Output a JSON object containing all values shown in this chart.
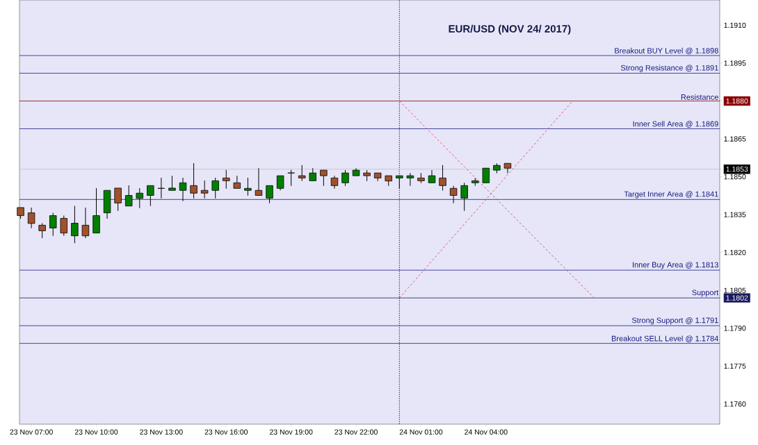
{
  "chart_data": {
    "type": "candlestick",
    "title": "EUR/USD (NOV 24/ 2017)",
    "x": [
      "2017-11-23T06:30",
      "2017-11-23T07:00",
      "2017-11-23T07:30",
      "2017-11-23T08:00",
      "2017-11-23T08:30",
      "2017-11-23T09:00",
      "2017-11-23T09:30",
      "2017-11-23T10:00",
      "2017-11-23T10:30",
      "2017-11-23T11:00",
      "2017-11-23T11:30",
      "2017-11-23T12:00",
      "2017-11-23T12:30",
      "2017-11-23T13:00",
      "2017-11-23T13:30",
      "2017-11-23T14:00",
      "2017-11-23T14:30",
      "2017-11-23T15:00",
      "2017-11-23T15:30",
      "2017-11-23T16:00",
      "2017-11-23T16:30",
      "2017-11-23T17:00",
      "2017-11-23T17:30",
      "2017-11-23T18:00",
      "2017-11-23T18:30",
      "2017-11-23T19:00",
      "2017-11-23T19:30",
      "2017-11-23T20:00",
      "2017-11-23T20:30",
      "2017-11-23T21:00",
      "2017-11-23T21:30",
      "2017-11-23T22:00",
      "2017-11-23T22:30",
      "2017-11-23T23:00",
      "2017-11-23T23:30",
      "2017-11-24T00:00",
      "2017-11-24T00:30",
      "2017-11-24T01:00",
      "2017-11-24T01:30",
      "2017-11-24T02:00",
      "2017-11-24T02:30",
      "2017-11-24T03:00",
      "2017-11-24T03:30",
      "2017-11-24T04:00",
      "2017-11-24T04:30",
      "2017-11-24T05:00"
    ],
    "ohlc": [
      [
        1.18378,
        1.18378,
        1.18334,
        1.18346
      ],
      [
        1.18357,
        1.18378,
        1.18296,
        1.18315
      ],
      [
        1.18308,
        1.18316,
        1.18257,
        1.18286
      ],
      [
        1.18297,
        1.18357,
        1.18266,
        1.18346
      ],
      [
        1.18335,
        1.18346,
        1.18266,
        1.18277
      ],
      [
        1.18266,
        1.18385,
        1.18237,
        1.18316
      ],
      [
        1.18308,
        1.18378,
        1.18257,
        1.18266
      ],
      [
        1.18277,
        1.18455,
        1.18277,
        1.18346
      ],
      [
        1.18357,
        1.18446,
        1.18334,
        1.18446
      ],
      [
        1.18455,
        1.18455,
        1.18365,
        1.18396
      ],
      [
        1.18384,
        1.18466,
        1.18384,
        1.18426
      ],
      [
        1.18414,
        1.18455,
        1.18376,
        1.18435
      ],
      [
        1.18426,
        1.18466,
        1.18384,
        1.18465
      ],
      [
        1.18454,
        1.18496,
        1.18414,
        1.18454
      ],
      [
        1.18446,
        1.18504,
        1.18446,
        1.18455
      ],
      [
        1.18446,
        1.18496,
        1.18403,
        1.18476
      ],
      [
        1.18465,
        1.18554,
        1.18414,
        1.18435
      ],
      [
        1.18446,
        1.18485,
        1.18414,
        1.18435
      ],
      [
        1.18446,
        1.18496,
        1.18414,
        1.18484
      ],
      [
        1.18495,
        1.18527,
        1.18453,
        1.18484
      ],
      [
        1.18476,
        1.18504,
        1.18454,
        1.18454
      ],
      [
        1.18446,
        1.18496,
        1.18425,
        1.18454
      ],
      [
        1.18446,
        1.18534,
        1.18426,
        1.18426
      ],
      [
        1.18415,
        1.18465,
        1.18395,
        1.18465
      ],
      [
        1.18454,
        1.18504,
        1.18446,
        1.18504
      ],
      [
        1.18515,
        1.18527,
        1.18464,
        1.18515
      ],
      [
        1.18504,
        1.18546,
        1.18483,
        1.18495
      ],
      [
        1.18484,
        1.18534,
        1.18484,
        1.18515
      ],
      [
        1.18526,
        1.18527,
        1.18464,
        1.18504
      ],
      [
        1.18495,
        1.18504,
        1.18453,
        1.18465
      ],
      [
        1.18476,
        1.18526,
        1.18464,
        1.18515
      ],
      [
        1.18504,
        1.18534,
        1.18504,
        1.18526
      ],
      [
        1.18515,
        1.18526,
        1.18483,
        1.18504
      ],
      [
        1.18515,
        1.18515,
        1.18483,
        1.18495
      ],
      [
        1.18504,
        1.18504,
        1.18464,
        1.18483
      ],
      [
        1.18495,
        1.18504,
        1.18453,
        1.18504
      ],
      [
        1.18495,
        1.18515,
        1.18464,
        1.18504
      ],
      [
        1.18495,
        1.18515,
        1.18475,
        1.18484
      ],
      [
        1.18476,
        1.18526,
        1.18476,
        1.18504
      ],
      [
        1.18495,
        1.18546,
        1.18445,
        1.18465
      ],
      [
        1.18454,
        1.18464,
        1.18395,
        1.18426
      ],
      [
        1.18415,
        1.18476,
        1.18365,
        1.18465
      ],
      [
        1.18476,
        1.18495,
        1.18464,
        1.18484
      ],
      [
        1.18476,
        1.18534,
        1.18476,
        1.18534
      ],
      [
        1.18526,
        1.18553,
        1.18514,
        1.18545
      ],
      [
        1.18553,
        1.18553,
        1.18514,
        1.18534
      ]
    ],
    "colors": [
      "#a0522d",
      "#a0522d",
      "#a0522d",
      "#008000",
      "#a0522d",
      "#008000",
      "#a0522d",
      "#008000",
      "#008000",
      "#a0522d",
      "#008000",
      "#008000",
      "#008000",
      "#000000",
      "#008000",
      "#008000",
      "#a0522d",
      "#a0522d",
      "#008000",
      "#a0522d",
      "#a0522d",
      "#008000",
      "#a0522d",
      "#008000",
      "#008000",
      "#000000",
      "#a0522d",
      "#008000",
      "#a0522d",
      "#a0522d",
      "#008000",
      "#008000",
      "#a0522d",
      "#a0522d",
      "#a0522d",
      "#008000",
      "#008000",
      "#a0522d",
      "#008000",
      "#a0522d",
      "#a0522d",
      "#008000",
      "#008000",
      "#008000",
      "#008000",
      "#a0522d"
    ],
    "xlim": [
      "2017-11-23T06:27",
      "2017-11-24T14:48"
    ],
    "ylim": [
      1.1752,
      1.192
    ],
    "xticks": [
      {
        "value": "2017-11-23T07:00",
        "label": "23 Nov 07:00"
      },
      {
        "value": "2017-11-23T10:00",
        "label": "23 Nov 10:00"
      },
      {
        "value": "2017-11-23T13:00",
        "label": "23 Nov 13:00"
      },
      {
        "value": "2017-11-23T16:00",
        "label": "23 Nov 16:00"
      },
      {
        "value": "2017-11-23T19:00",
        "label": "23 Nov 19:00"
      },
      {
        "value": "2017-11-23T22:00",
        "label": "23 Nov 22:00"
      },
      {
        "value": "2017-11-24T01:00",
        "label": "24 Nov 01:00"
      },
      {
        "value": "2017-11-24T04:00",
        "label": "24 Nov 04:00"
      }
    ],
    "yticks": [
      {
        "value": 1.176,
        "label": "1.1760"
      },
      {
        "value": 1.1775,
        "label": "1.1775"
      },
      {
        "value": 1.179,
        "label": "1.1790"
      },
      {
        "value": 1.1805,
        "label": "1.1805"
      },
      {
        "value": 1.182,
        "label": "1.1820"
      },
      {
        "value": 1.1835,
        "label": "1.1835"
      },
      {
        "value": 1.185,
        "label": "1.1850"
      },
      {
        "value": 1.1865,
        "label": "1.1865"
      },
      {
        "value": 1.188,
        "label": "1.1880"
      },
      {
        "value": 1.1895,
        "label": "1.1895"
      },
      {
        "value": 1.191,
        "label": "1.1910"
      },
      {
        "value": 1.1802,
        "label": "1.1802"
      },
      {
        "value": 1.1853,
        "label": "1.1853"
      }
    ],
    "ref_lines": [
      {
        "axis": "x",
        "value": "2017-11-24T00:00",
        "color": "#000000",
        "line_style": "dotted"
      },
      {
        "axis": "y",
        "value": 1.1853,
        "color": "#c0c0c0"
      },
      {
        "axis": "y",
        "value": 1.1898,
        "label": "Breakout BUY Level @ 1.1898",
        "color": "#1a1a8c"
      },
      {
        "axis": "y",
        "value": 1.1891,
        "label": "Strong Resistance @  1.1891",
        "color": "#1a1a8c"
      },
      {
        "axis": "y",
        "value": 1.188,
        "label": "Resistance",
        "color": "#8b0000"
      },
      {
        "axis": "y",
        "value": 1.1869,
        "label": "Inner Sell Area @ 1.1869",
        "color": "#1a1a8c"
      },
      {
        "axis": "y",
        "value": 1.1841,
        "label": "Target Inner Area @ 1.1841",
        "color": "#1a1a8c"
      },
      {
        "axis": "y",
        "value": 1.1813,
        "label": "Inner Buy Area  @ 1.1813",
        "color": "#1a1a8c"
      },
      {
        "axis": "y",
        "value": 1.1802,
        "label": "Support",
        "color": "#1a1a60"
      },
      {
        "axis": "y",
        "value": 1.1791,
        "label": "Strong Support  @  1.1791",
        "color": "#1a1a8c"
      },
      {
        "axis": "y",
        "value": 1.1784,
        "label": "Breakout SELL Level  @ 1.1784",
        "color": "#1a1a8c"
      }
    ],
    "series": [
      {
        "type": "line",
        "x": [
          "2017-11-24T00:00",
          "2017-11-24T09:00"
        ],
        "values": [
          1.188,
          1.1802
        ],
        "color": "#e03040",
        "line_style": "dashed"
      },
      {
        "type": "line",
        "x": [
          "2017-11-24T00:00",
          "2017-11-24T08:00"
        ],
        "values": [
          1.1802,
          1.188
        ],
        "color": "#e03040",
        "line_style": "dashed"
      }
    ]
  }
}
